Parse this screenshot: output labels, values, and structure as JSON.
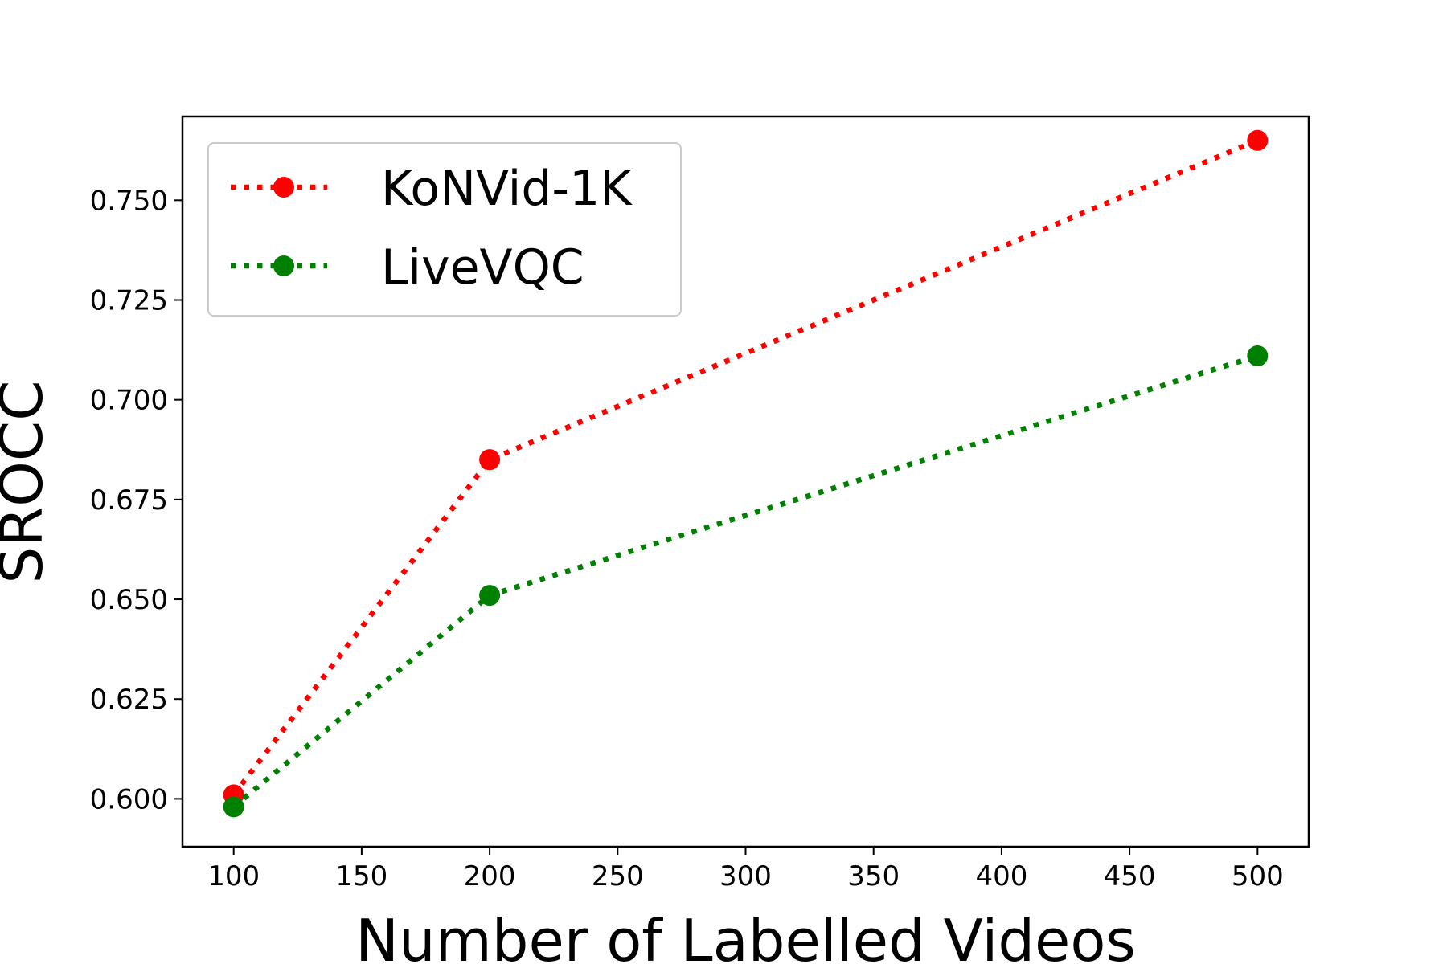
{
  "chart_data": {
    "type": "line",
    "title": "",
    "xlabel": "Number of Labelled Videos",
    "ylabel": "SROCC",
    "x": [
      100,
      200,
      500
    ],
    "xlim": [
      80,
      520
    ],
    "ylim": [
      0.588,
      0.771
    ],
    "xticks": [
      100,
      150,
      200,
      250,
      300,
      350,
      400,
      450,
      500
    ],
    "yticks": [
      0.6,
      0.625,
      0.65,
      0.675,
      0.7,
      0.725,
      0.75
    ],
    "ytick_labels": [
      "0.600",
      "0.625",
      "0.650",
      "0.675",
      "0.700",
      "0.725",
      "0.750"
    ],
    "grid": false,
    "legend_position": "top-left",
    "series": [
      {
        "name": "KoNVid-1K",
        "color": "#ff0000",
        "line_style": "dotted",
        "marker": "circle",
        "values": [
          0.601,
          0.685,
          0.765
        ]
      },
      {
        "name": "LiveVQC",
        "color": "#008000",
        "line_style": "dotted",
        "marker": "circle",
        "values": [
          0.598,
          0.651,
          0.711
        ]
      }
    ]
  }
}
